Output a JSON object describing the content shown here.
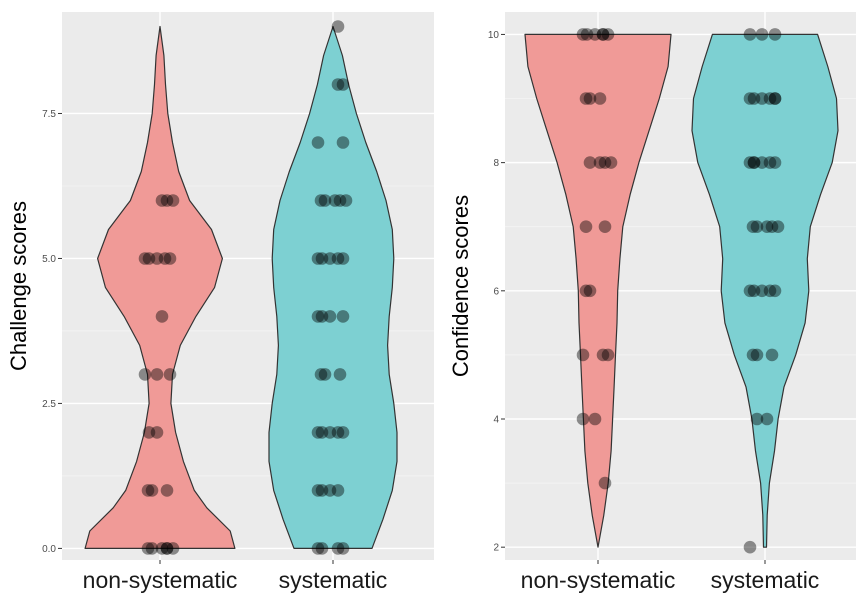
{
  "chart_data": [
    {
      "type": "violin",
      "ylabel": "Challenge scores",
      "categories": [
        "non-systematic",
        "systematic"
      ],
      "ylim": [
        -0.2,
        9.25
      ],
      "yticks": [
        0,
        2.5,
        5,
        7.5
      ],
      "ytick_labels": [
        "0.0",
        "2.5",
        "5.0",
        "7.5"
      ],
      "grid": true,
      "fill_colors": [
        "#f09a97",
        "#7dd0d2"
      ],
      "series": [
        {
          "category": "non-systematic",
          "points": [
            0,
            0,
            0,
            0,
            0,
            0,
            1,
            1,
            1,
            2,
            2,
            3,
            3,
            3,
            4,
            5,
            5,
            5,
            5,
            5,
            6,
            6,
            6
          ],
          "density": [
            [
              0,
              0.96
            ],
            [
              0.3,
              0.9
            ],
            [
              0.7,
              0.6
            ],
            [
              1,
              0.44
            ],
            [
              1.5,
              0.3
            ],
            [
              2,
              0.2
            ],
            [
              2.5,
              0.14
            ],
            [
              3,
              0.16
            ],
            [
              3.5,
              0.26
            ],
            [
              4,
              0.46
            ],
            [
              4.5,
              0.7
            ],
            [
              5,
              0.8
            ],
            [
              5.5,
              0.66
            ],
            [
              6,
              0.38
            ],
            [
              6.5,
              0.24
            ],
            [
              7,
              0.16
            ],
            [
              7.5,
              0.1
            ],
            [
              8,
              0.07
            ],
            [
              8.5,
              0.05
            ],
            [
              9,
              0
            ]
          ]
        },
        {
          "category": "systematic",
          "points": [
            0,
            0,
            0,
            0,
            1,
            1,
            1,
            1,
            2,
            2,
            2,
            2,
            2,
            3,
            3,
            3,
            4,
            4,
            4,
            4,
            5,
            5,
            5,
            5,
            5,
            6,
            6,
            6,
            6,
            6,
            7,
            7,
            8,
            8,
            9
          ],
          "density": [
            [
              0,
              0.5
            ],
            [
              0.5,
              0.64
            ],
            [
              1,
              0.76
            ],
            [
              1.5,
              0.82
            ],
            [
              2,
              0.82
            ],
            [
              2.5,
              0.78
            ],
            [
              3,
              0.72
            ],
            [
              3.5,
              0.7
            ],
            [
              4,
              0.72
            ],
            [
              4.5,
              0.76
            ],
            [
              5,
              0.78
            ],
            [
              5.5,
              0.76
            ],
            [
              6,
              0.68
            ],
            [
              6.5,
              0.56
            ],
            [
              7,
              0.42
            ],
            [
              7.5,
              0.3
            ],
            [
              8,
              0.2
            ],
            [
              8.5,
              0.12
            ],
            [
              9,
              0
            ]
          ]
        }
      ]
    },
    {
      "type": "violin",
      "ylabel": "Confidence scores",
      "categories": [
        "non-systematic",
        "systematic"
      ],
      "ylim": [
        1.8,
        10.35
      ],
      "yticks": [
        2,
        4,
        6,
        8,
        10
      ],
      "ytick_labels": [
        "2",
        "4",
        "6",
        "8",
        "10"
      ],
      "grid": true,
      "fill_colors": [
        "#f09a97",
        "#7dd0d2"
      ],
      "series": [
        {
          "category": "non-systematic",
          "points": [
            3,
            4,
            4,
            5,
            5,
            5,
            6,
            6,
            7,
            7,
            8,
            8,
            8,
            8,
            9,
            9,
            9,
            10,
            10,
            10,
            10,
            10,
            10
          ],
          "density": [
            [
              2,
              0
            ],
            [
              2.5,
              0.08
            ],
            [
              3,
              0.14
            ],
            [
              3.5,
              0.18
            ],
            [
              4,
              0.2
            ],
            [
              4.5,
              0.22
            ],
            [
              5,
              0.24
            ],
            [
              5.5,
              0.26
            ],
            [
              6,
              0.27
            ],
            [
              6.5,
              0.3
            ],
            [
              7,
              0.34
            ],
            [
              7.5,
              0.44
            ],
            [
              8,
              0.56
            ],
            [
              8.5,
              0.7
            ],
            [
              9,
              0.84
            ],
            [
              9.5,
              0.96
            ],
            [
              10,
              1
            ]
          ]
        },
        {
          "category": "systematic",
          "points": [
            2,
            4,
            4,
            5,
            5,
            5,
            6,
            6,
            6,
            6,
            6,
            7,
            7,
            7,
            7,
            7,
            8,
            8,
            8,
            8,
            8,
            8,
            9,
            9,
            9,
            9,
            9,
            9,
            10,
            10,
            10
          ],
          "density": [
            [
              2,
              0.02
            ],
            [
              2.5,
              0.03
            ],
            [
              3,
              0.06
            ],
            [
              3.5,
              0.13
            ],
            [
              4,
              0.18
            ],
            [
              4.5,
              0.26
            ],
            [
              5,
              0.42
            ],
            [
              5.5,
              0.55
            ],
            [
              6,
              0.6
            ],
            [
              6.5,
              0.58
            ],
            [
              7,
              0.62
            ],
            [
              7.5,
              0.76
            ],
            [
              8,
              0.92
            ],
            [
              8.5,
              1
            ],
            [
              9,
              0.98
            ],
            [
              9.5,
              0.86
            ],
            [
              10,
              0.72
            ]
          ]
        }
      ]
    }
  ]
}
